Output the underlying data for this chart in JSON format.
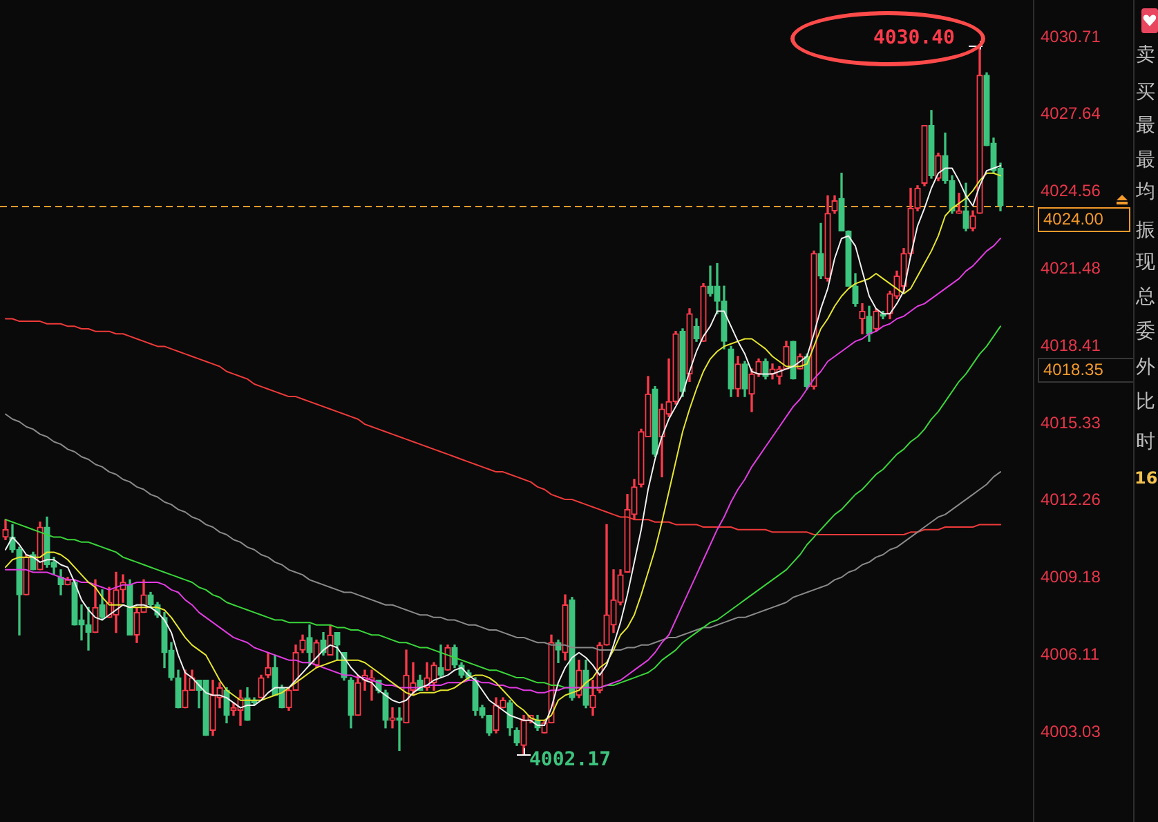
{
  "chart_data": {
    "type": "candlestick",
    "tick_labels": "y",
    "categories": [
      null,
      null,
      null,
      null,
      null,
      null,
      null,
      null,
      null,
      null,
      null,
      null,
      null,
      null,
      null,
      null,
      null,
      null,
      null,
      null,
      null,
      null,
      null,
      null,
      null,
      null,
      null,
      null,
      null,
      null,
      null,
      null,
      null,
      null,
      null,
      null,
      null,
      null,
      null,
      null,
      null,
      null,
      null,
      null,
      null,
      null,
      null,
      null,
      null,
      null,
      null,
      null,
      null,
      null,
      null,
      null,
      null,
      null,
      null,
      null,
      null,
      null,
      null,
      null,
      null,
      null,
      null,
      null,
      null,
      null,
      null,
      null,
      null,
      null,
      null,
      null,
      null,
      null,
      null,
      null,
      null,
      null,
      null,
      null,
      null,
      null,
      null,
      null,
      null,
      null,
      null,
      null,
      null,
      null,
      null,
      null,
      null,
      null,
      null,
      null,
      null,
      null,
      null,
      null,
      null,
      null,
      null,
      null,
      null,
      null,
      null,
      null,
      null,
      null,
      null,
      null,
      null,
      null,
      null,
      null,
      null,
      null,
      null,
      null,
      null,
      null,
      null,
      null,
      null,
      null,
      null,
      null,
      null,
      null,
      null,
      null,
      null,
      null,
      null,
      null,
      null,
      null,
      null,
      null,
      null
    ],
    "ohlc": [
      [
        4010.8,
        4011.5,
        4010.7,
        4011.1
      ],
      [
        4010.8,
        4011.3,
        4010.2,
        4010.3
      ],
      [
        4010.3,
        4010.4,
        4006.9,
        4008.5
      ],
      [
        4008.5,
        4010.1,
        4008.5,
        4010.0
      ],
      [
        4010.1,
        4010.2,
        4009.5,
        4009.5
      ],
      [
        4009.5,
        4011.4,
        4009.5,
        4011.2
      ],
      [
        4011.2,
        4011.6,
        4009.6,
        4009.7
      ],
      [
        4009.8,
        4010.0,
        4009.3,
        4009.6
      ],
      [
        4009.2,
        4009.5,
        4008.5,
        4008.9
      ],
      [
        4008.9,
        4009.2,
        4008.9,
        4009.1
      ],
      [
        4009.0,
        4009.1,
        4007.3,
        4007.3
      ],
      [
        4007.5,
        4008.1,
        4006.7,
        4007.3
      ],
      [
        4007.3,
        4008.0,
        4006.3,
        4007.0
      ],
      [
        4007.0,
        4009.1,
        4007.0,
        4008.0
      ],
      [
        4008.1,
        4008.7,
        4007.5,
        4007.6
      ],
      [
        4007.6,
        4008.8,
        4007.6,
        4008.2
      ],
      [
        4007.7,
        4009.4,
        4007.0,
        4008.7
      ],
      [
        4008.7,
        4009.3,
        4008.2,
        4009.0
      ],
      [
        4008.9,
        4009.1,
        4006.9,
        4006.9
      ],
      [
        4006.9,
        4008.0,
        4006.6,
        4007.8
      ],
      [
        4007.8,
        4009.1,
        4007.8,
        4008.5
      ],
      [
        4008.5,
        4008.6,
        4008.0,
        4008.1
      ],
      [
        4008.1,
        4008.2,
        4007.6,
        4007.7
      ],
      [
        4007.6,
        4007.8,
        4005.6,
        4006.2
      ],
      [
        4006.3,
        4006.6,
        4005.1,
        4005.2
      ],
      [
        4005.2,
        4005.5,
        4004.0,
        4004.0
      ],
      [
        4004.0,
        4005.5,
        4004.0,
        4004.7
      ],
      [
        4004.7,
        4005.5,
        4004.7,
        4005.2
      ],
      [
        4005.1,
        4005.1,
        4004.0,
        4004.7
      ],
      [
        4005.1,
        4005.1,
        4002.9,
        4002.9
      ],
      [
        4003.1,
        4005.1,
        4002.9,
        4004.5
      ],
      [
        4004.4,
        4005.0,
        4004.0,
        4004.8
      ],
      [
        4004.7,
        4004.8,
        4003.4,
        4003.7
      ],
      [
        4003.9,
        4004.2,
        4003.7,
        4004.0
      ],
      [
        4003.9,
        4004.7,
        4003.3,
        4004.4
      ],
      [
        4004.4,
        4004.8,
        4003.5,
        4003.5
      ],
      [
        4004.3,
        4004.4,
        4004.1,
        4004.2
      ],
      [
        4004.4,
        4005.3,
        4004.4,
        4005.2
      ],
      [
        4005.3,
        4006.2,
        4005.2,
        4005.6
      ],
      [
        4005.6,
        4006.1,
        4004.5,
        4004.5
      ],
      [
        4004.8,
        4004.9,
        4004.0,
        4004.0
      ],
      [
        4004.0,
        4004.8,
        4003.9,
        4004.7
      ],
      [
        4004.7,
        4006.5,
        4004.7,
        4006.2
      ],
      [
        4006.3,
        4006.9,
        4006.2,
        4006.7
      ],
      [
        4006.8,
        4007.3,
        4005.7,
        4006.2
      ],
      [
        4005.7,
        4006.7,
        4005.6,
        4006.6
      ],
      [
        4006.7,
        4007.0,
        4006.1,
        4006.2
      ],
      [
        4006.1,
        4007.3,
        4006.1,
        4006.9
      ],
      [
        4007.0,
        4007.0,
        4005.9,
        4006.5
      ],
      [
        4006.2,
        4006.2,
        4005.1,
        4005.2
      ],
      [
        4005.1,
        4005.2,
        4003.2,
        4003.7
      ],
      [
        4003.7,
        4005.3,
        4003.7,
        4005.0
      ],
      [
        4005.1,
        4005.5,
        4004.7,
        4005.3
      ],
      [
        4005.1,
        4005.5,
        4004.3,
        4005.2
      ],
      [
        4005.1,
        4005.1,
        4004.6,
        4004.7
      ],
      [
        4004.6,
        4004.7,
        4003.2,
        4003.5
      ],
      [
        4003.5,
        4004.0,
        4003.2,
        4003.6
      ],
      [
        4003.6,
        4004.0,
        4002.3,
        4003.5
      ],
      [
        4003.4,
        4006.3,
        4003.4,
        4005.3
      ],
      [
        4004.7,
        4005.8,
        4004.5,
        4005.0
      ],
      [
        4005.1,
        4005.3,
        4004.7,
        4004.7
      ],
      [
        4004.8,
        4005.8,
        4004.7,
        4005.2
      ],
      [
        4005.0,
        4005.8,
        4004.7,
        4005.7
      ],
      [
        4005.6,
        4006.5,
        4005.2,
        4005.3
      ],
      [
        4005.5,
        4006.5,
        4005.5,
        4006.4
      ],
      [
        4006.4,
        4006.5,
        4005.6,
        4005.7
      ],
      [
        4005.7,
        4005.8,
        4005.2,
        4005.3
      ],
      [
        4005.4,
        4005.5,
        4005.1,
        4005.2
      ],
      [
        4005.1,
        4005.2,
        4003.7,
        4003.9
      ],
      [
        4004.0,
        4004.1,
        4003.6,
        4003.7
      ],
      [
        4003.7,
        4003.7,
        4002.9,
        4003.0
      ],
      [
        4003.1,
        4004.4,
        4003.0,
        4004.1
      ],
      [
        4004.0,
        4004.4,
        4004.0,
        4004.3
      ],
      [
        4004.2,
        4004.3,
        4002.9,
        4003.2
      ],
      [
        4003.1,
        4003.2,
        4002.5,
        4002.6
      ],
      [
        4002.5,
        4003.7,
        4002.17,
        4003.5
      ],
      [
        4003.5,
        4003.7,
        4003.4,
        4003.7
      ],
      [
        4003.5,
        4003.7,
        4003.1,
        4003.2
      ],
      [
        4003.0,
        4003.5,
        4003.0,
        4003.4
      ],
      [
        4003.4,
        4006.9,
        4003.4,
        4006.6
      ],
      [
        4006.6,
        4006.7,
        4005.8,
        4006.3
      ],
      [
        4006.2,
        4008.5,
        4005.9,
        4008.1
      ],
      [
        4008.3,
        4008.4,
        4004.3,
        4004.4
      ],
      [
        4004.5,
        4005.9,
        4004.4,
        4005.5
      ],
      [
        4005.5,
        4005.9,
        4004.0,
        4004.1
      ],
      [
        4004.0,
        4005.1,
        4003.7,
        4004.5
      ],
      [
        4004.7,
        4006.6,
        4004.6,
        4006.5
      ],
      [
        4006.5,
        4011.3,
        4006.5,
        4007.7
      ],
      [
        4007.3,
        4009.5,
        4007.0,
        4008.3
      ],
      [
        4008.2,
        4009.5,
        4008.1,
        4009.3
      ],
      [
        4009.4,
        4012.5,
        4009.4,
        4011.9
      ],
      [
        4011.7,
        4013.1,
        4011.5,
        4012.8
      ],
      [
        4012.9,
        4015.1,
        4012.8,
        4015.0
      ],
      [
        4014.8,
        4017.2,
        4014.8,
        4016.5
      ],
      [
        4016.7,
        4016.8,
        4014.0,
        4014.1
      ],
      [
        4014.8,
        4016.1,
        4013.2,
        4015.9
      ],
      [
        4015.7,
        4017.9,
        4015.6,
        4016.2
      ],
      [
        4016.2,
        4019.0,
        4016.1,
        4018.9
      ],
      [
        4019.0,
        4019.1,
        4016.4,
        4016.6
      ],
      [
        4017.3,
        4019.9,
        4017.0,
        4019.7
      ],
      [
        4019.2,
        4019.5,
        4018.6,
        4018.7
      ],
      [
        4018.6,
        4020.9,
        4018.6,
        4020.8
      ],
      [
        4020.8,
        4021.6,
        4020.4,
        4020.5
      ],
      [
        4020.8,
        4021.7,
        4019.7,
        4020.2
      ],
      [
        4020.2,
        4020.8,
        4018.3,
        4018.6
      ],
      [
        4018.3,
        4018.4,
        4016.4,
        4016.7
      ],
      [
        4016.7,
        4018.0,
        4016.4,
        4017.7
      ],
      [
        4017.7,
        4017.8,
        4016.4,
        4016.7
      ],
      [
        4016.5,
        4017.5,
        4015.8,
        4017.3
      ],
      [
        4017.3,
        4017.9,
        4017.2,
        4017.8
      ],
      [
        4017.8,
        4017.9,
        4017.1,
        4017.2
      ],
      [
        4017.3,
        4017.7,
        4017.1,
        4017.5
      ],
      [
        4017.2,
        4017.6,
        4016.9,
        4017.5
      ],
      [
        4017.5,
        4018.6,
        4017.5,
        4018.4
      ],
      [
        4018.6,
        4018.6,
        4017.1,
        4017.1
      ],
      [
        4017.5,
        4018.1,
        4017.5,
        4018.0
      ],
      [
        4018.0,
        4018.1,
        4016.7,
        4016.8
      ],
      [
        4016.8,
        4022.2,
        4016.7,
        4022.1
      ],
      [
        4022.1,
        4023.3,
        4021.1,
        4021.2
      ],
      [
        4021.1,
        4024.4,
        4021.0,
        4023.7
      ],
      [
        4023.8,
        4024.4,
        4023.7,
        4024.2
      ],
      [
        4024.3,
        4025.3,
        4023.0,
        4023.0
      ],
      [
        4023.0,
        4023.0,
        4020.8,
        4020.8
      ],
      [
        4020.8,
        4021.3,
        4020.0,
        4020.1
      ],
      [
        4019.5,
        4020.1,
        4018.9,
        4019.8
      ],
      [
        4019.6,
        4020.0,
        4018.6,
        4018.9
      ],
      [
        4019.1,
        4019.9,
        4019.0,
        4019.8
      ],
      [
        4019.7,
        4019.8,
        4019.5,
        4019.6
      ],
      [
        4019.7,
        4020.6,
        4019.5,
        4020.5
      ],
      [
        4020.4,
        4021.4,
        4020.3,
        4021.2
      ],
      [
        4020.8,
        4022.3,
        4020.6,
        4022.1
      ],
      [
        4022.1,
        4024.7,
        4022.0,
        4023.9
      ],
      [
        4023.9,
        4024.8,
        4023.8,
        4024.7
      ],
      [
        4024.9,
        4027.2,
        4024.8,
        4027.2
      ],
      [
        4027.2,
        4027.8,
        4025.1,
        4025.2
      ],
      [
        4025.1,
        4026.1,
        4025.0,
        4026.0
      ],
      [
        4026.0,
        4026.9,
        4024.9,
        4025.0
      ],
      [
        4025.0,
        4025.2,
        4023.7,
        4023.8
      ],
      [
        4023.7,
        4024.5,
        4023.7,
        4023.8
      ],
      [
        4023.8,
        4024.9,
        4023.0,
        4023.1
      ],
      [
        4023.1,
        4023.8,
        4023.0,
        4023.6
      ],
      [
        4023.7,
        4030.4,
        4023.7,
        4029.2
      ],
      [
        4029.2,
        4029.3,
        4026.4,
        4026.4
      ],
      [
        4026.5,
        4026.7,
        4025.3,
        4025.4
      ],
      [
        4025.5,
        4025.7,
        4023.8,
        4024.0
      ]
    ],
    "colors": [
      "#ff3b4b",
      "#3dc47e",
      "#3dc47e",
      "#ff3b4b",
      "#3dc47e",
      "#ff3b4b",
      "#3dc47e",
      "#3dc47e",
      "#3dc47e",
      "#ff3b4b",
      "#3dc47e",
      "#3dc47e",
      "#3dc47e",
      "#ff3b4b",
      "#3dc47e",
      "#ff3b4b",
      "#ff3b4b",
      "#ff3b4b",
      "#3dc47e",
      "#ff3b4b",
      "#ff3b4b",
      "#3dc47e",
      "#3dc47e",
      "#3dc47e",
      "#3dc47e",
      "#3dc47e",
      "#ff3b4b",
      "#ff3b4b",
      "#3dc47e",
      "#3dc47e",
      "#ff3b4b",
      "#ff3b4b",
      "#3dc47e",
      "#ff3b4b",
      "#ff3b4b",
      "#3dc47e",
      "#3dc47e",
      "#ff3b4b",
      "#ff3b4b",
      "#3dc47e",
      "#3dc47e",
      "#ff3b4b",
      "#ff3b4b",
      "#ff3b4b",
      "#3dc47e",
      "#ff3b4b",
      "#3dc47e",
      "#ff3b4b",
      "#3dc47e",
      "#3dc47e",
      "#3dc47e",
      "#ff3b4b",
      "#ff3b4b",
      "#ff3b4b",
      "#3dc47e",
      "#3dc47e",
      "#ff3b4b",
      "#3dc47e",
      "#ff3b4b",
      "#ff3b4b",
      "#3dc47e",
      "#ff3b4b",
      "#ff3b4b",
      "#3dc47e",
      "#ff3b4b",
      "#3dc47e",
      "#3dc47e",
      "#3dc47e",
      "#3dc47e",
      "#3dc47e",
      "#3dc47e",
      "#ff3b4b",
      "#ff3b4b",
      "#3dc47e",
      "#3dc47e",
      "#ff3b4b",
      "#ff3b4b",
      "#3dc47e",
      "#ff3b4b",
      "#ff3b4b",
      "#3dc47e",
      "#ff3b4b",
      "#3dc47e",
      "#ff3b4b",
      "#3dc47e",
      "#ff3b4b",
      "#ff3b4b",
      "#ff3b4b",
      "#ff3b4b",
      "#ff3b4b",
      "#ff3b4b",
      "#ff3b4b",
      "#ff3b4b",
      "#ff3b4b",
      "#3dc47e",
      "#ff3b4b",
      "#ff3b4b",
      "#ff3b4b",
      "#3dc47e",
      "#ff3b4b",
      "#3dc47e",
      "#ff3b4b",
      "#3dc47e",
      "#3dc47e",
      "#3dc47e",
      "#3dc47e",
      "#ff3b4b",
      "#3dc47e",
      "#ff3b4b",
      "#ff3b4b",
      "#3dc47e",
      "#ff3b4b",
      "#ff3b4b",
      "#ff3b4b",
      "#3dc47e",
      "#ff3b4b",
      "#3dc47e",
      "#ff3b4b",
      "#3dc47e",
      "#ff3b4b",
      "#ff3b4b",
      "#3dc47e",
      "#3dc47e",
      "#3dc47e",
      "#ff3b4b",
      "#3dc47e",
      "#ff3b4b",
      "#3dc47e",
      "#ff3b4b",
      "#ff3b4b",
      "#ff3b4b",
      "#ff3b4b",
      "#ff3b4b",
      "#ff3b4b",
      "#3dc47e",
      "#ff3b4b",
      "#3dc47e",
      "#3dc47e",
      "#ff3b4b",
      "#3dc47e",
      "#ff3b4b",
      "#ff3b4b",
      "#3dc47e",
      "#3dc47e",
      "#3dc47e"
    ],
    "series": [
      {
        "type": "line",
        "color": "#f0f0f0",
        "values": [
          4010.3,
          4010.8,
          4010.5,
          4010.1,
          4010.0,
          4009.8,
          4009.9,
          4009.9,
          4009.7,
          4009.6,
          4009.0,
          4008.3,
          4007.9,
          4007.6,
          4007.5,
          4007.7,
          4007.9,
          4008.1,
          4008.0,
          4008.1,
          4008.1,
          4008.0,
          4007.8,
          4007.5,
          4007.0,
          4006.1,
          4005.4,
          4005.2,
          4004.9,
          4004.6,
          4004.5,
          4004.5,
          4004.4,
          4004.2,
          4004.0,
          4004.1,
          4004.1,
          4004.3,
          4004.6,
          4004.8,
          4004.8,
          4004.8,
          4005.1,
          4005.4,
          4005.7,
          4006.0,
          4006.3,
          4006.5,
          4006.4,
          4006.0,
          4005.6,
          4005.3,
          4005.1,
          4005.0,
          4004.7,
          4004.5,
          4004.3,
          4004.2,
          4004.3,
          4004.6,
          4004.8,
          4004.9,
          4005.1,
          4005.2,
          4005.3,
          4005.5,
          4005.6,
          4005.3,
          4005.1,
          4004.7,
          4004.3,
          4004.1,
          4003.9,
          4003.7,
          4003.6,
          4003.5,
          4003.5,
          4003.3,
          4003.3,
          4004.0,
          4005.0,
          4005.6,
          4006.0,
          4006.2,
          4006.0,
          4005.7,
          4005.3,
          4005.7,
          4006.5,
          4007.4,
          4008.5,
          4009.8,
          4011.1,
          4012.7,
          4013.9,
          4014.8,
          4015.5,
          4016.0,
          4016.5,
          4017.4,
          4018.2,
          4018.8,
          4019.2,
          4019.8,
          4019.8,
          4019.2,
          4018.6,
          4018.1,
          4017.4,
          4017.3,
          4017.3,
          4017.3,
          4017.4,
          4017.5,
          4017.6,
          4017.8,
          4018.0,
          4018.9,
          4019.9,
          4020.7,
          4021.9,
          4022.7,
          4022.8,
          4022.4,
          4021.4,
          4020.4,
          4019.9,
          4019.7,
          4019.7,
          4020.1,
          4020.6,
          4022.0,
          4023.2,
          4023.9,
          4024.7,
          4025.3,
          4025.5,
          4025.5,
          4025.0,
          4024.4,
          4024.0,
          4024.8,
          4025.4,
          4025.5,
          4025.6
        ]
      },
      {
        "type": "line",
        "color": "#e6e62e",
        "values": [
          4009.6,
          4009.9,
          4010.0,
          4010.0,
          4010.0,
          4010.0,
          4010.2,
          4010.2,
          4010.1,
          4009.9,
          4009.6,
          4009.3,
          4009.0,
          4008.8,
          4008.4,
          4008.1,
          4008.1,
          4008.1,
          4008.0,
          4008.0,
          4008.0,
          4008.0,
          4008.0,
          4007.9,
          4007.6,
          4007.2,
          4006.8,
          4006.5,
          4006.3,
          4006.1,
          4005.6,
          4005.1,
          4004.7,
          4004.5,
          4004.3,
          4004.3,
          4004.3,
          4004.3,
          4004.4,
          4004.5,
          4004.6,
          4004.8,
          4005.0,
          4005.2,
          4005.4,
          4005.6,
          4005.7,
          4005.8,
          4005.9,
          4005.9,
          4005.9,
          4005.9,
          4005.8,
          4005.6,
          4005.4,
          4005.2,
          4005.0,
          4004.8,
          4004.6,
          4004.5,
          4004.6,
          4004.6,
          4004.6,
          4004.7,
          4004.7,
          4004.8,
          4005.0,
          4005.2,
          4005.3,
          4005.3,
          4005.2,
          4005.0,
          4004.7,
          4004.4,
          4004.1,
          4003.9,
          4003.6,
          4003.5,
          4003.5,
          4003.7,
          4004.3,
          4004.5,
          4004.6,
          4004.7,
          4005.0,
          4005.2,
          4005.6,
          4005.8,
          4006.3,
          4006.9,
          4007.2,
          4007.7,
          4008.5,
          4009.4,
          4010.3,
          4011.4,
          4012.6,
          4013.8,
          4015.0,
          4015.9,
          4016.7,
          4017.4,
          4017.9,
          4018.2,
          4018.4,
          4018.5,
          4018.6,
          4018.7,
          4018.7,
          4018.5,
          4018.3,
          4018.0,
          4017.8,
          4017.6,
          4017.6,
          4017.6,
          4017.7,
          4018.4,
          4019.1,
          4019.5,
          4020.0,
          4020.4,
          4020.7,
          4020.9,
          4021.0,
          4021.1,
          4021.3,
          4021.1,
          4020.9,
          4020.7,
          4020.5,
          4020.7,
          4021.2,
          4021.7,
          4022.2,
          4022.8,
          4023.6,
          4023.9,
          4024.1,
          4024.3,
          4024.6,
          4025.0,
          4025.3,
          4025.3,
          4025.2
        ]
      },
      {
        "type": "line",
        "color": "#e33be3",
        "values": [
          4009.5,
          4009.5,
          4009.5,
          4009.5,
          4009.4,
          4009.4,
          4009.4,
          4009.3,
          4009.2,
          4009.1,
          4009.1,
          4009.0,
          4009.0,
          4008.9,
          4008.8,
          4008.7,
          4008.8,
          4008.9,
          4008.9,
          4009.0,
          4009.0,
          4009.0,
          4009.0,
          4008.9,
          4008.7,
          4008.6,
          4008.3,
          4008.1,
          4007.8,
          4007.6,
          4007.4,
          4007.2,
          4007.0,
          4006.8,
          4006.7,
          4006.6,
          4006.4,
          4006.3,
          4006.2,
          4006.1,
          4006.0,
          4005.9,
          4005.9,
          4005.8,
          4005.8,
          4005.7,
          4005.6,
          4005.5,
          4005.4,
          4005.3,
          4005.3,
          4005.2,
          4005.2,
          4005.1,
          4005.0,
          4004.9,
          4004.9,
          4004.8,
          4004.8,
          4004.8,
          4004.8,
          4004.9,
          4004.9,
          4004.9,
          4005.0,
          4005.0,
          4005.0,
          4005.1,
          4005.1,
          4005.0,
          4005.0,
          4004.9,
          4004.9,
          4004.8,
          4004.8,
          4004.7,
          4004.7,
          4004.6,
          4004.6,
          4004.7,
          4004.7,
          4004.8,
          4004.8,
          4004.8,
          4004.8,
          4004.8,
          4004.8,
          4004.9,
          4005.0,
          4005.1,
          4005.3,
          4005.5,
          4005.7,
          4005.9,
          4006.2,
          4006.6,
          4006.9,
          4007.5,
          4008.1,
          4008.7,
          4009.3,
          4009.9,
          4010.5,
          4011.1,
          4011.6,
          4012.2,
          4012.7,
          4013.1,
          4013.6,
          4014.0,
          4014.4,
          4014.8,
          4015.2,
          4015.6,
          4016.0,
          4016.3,
          4016.7,
          4017.1,
          4017.4,
          4017.8,
          4018.0,
          4018.2,
          4018.4,
          4018.6,
          4018.7,
          4018.9,
          4019.0,
          4019.2,
          4019.3,
          4019.5,
          4019.6,
          4019.8,
          4020.0,
          4020.1,
          4020.3,
          4020.5,
          4020.7,
          4020.9,
          4021.1,
          4021.4,
          4021.6,
          4021.9,
          4022.2,
          4022.4,
          4022.7
        ]
      },
      {
        "type": "line",
        "color": "#3ad63a",
        "values": [
          4011.5,
          4011.4,
          4011.3,
          4011.2,
          4011.1,
          4011.0,
          4010.9,
          4010.8,
          4010.8,
          4010.7,
          4010.7,
          4010.6,
          4010.6,
          4010.5,
          4010.4,
          4010.3,
          4010.2,
          4010.0,
          4009.9,
          4009.8,
          4009.7,
          4009.6,
          4009.5,
          4009.4,
          4009.3,
          4009.2,
          4009.1,
          4009.0,
          4008.8,
          4008.7,
          4008.5,
          4008.4,
          4008.2,
          4008.1,
          4008.0,
          4007.9,
          4007.8,
          4007.7,
          4007.6,
          4007.5,
          4007.5,
          4007.4,
          4007.4,
          4007.4,
          4007.4,
          4007.3,
          4007.3,
          4007.3,
          4007.2,
          4007.2,
          4007.1,
          4007.1,
          4007.0,
          4006.9,
          4006.9,
          4006.8,
          4006.7,
          4006.6,
          4006.6,
          4006.5,
          4006.4,
          4006.4,
          4006.3,
          4006.2,
          4006.1,
          4006.0,
          4005.9,
          4005.8,
          4005.7,
          4005.6,
          4005.5,
          4005.5,
          4005.4,
          4005.3,
          4005.2,
          4005.2,
          4005.1,
          4005.0,
          4005.0,
          4004.9,
          4004.9,
          4004.8,
          4004.8,
          4004.8,
          4004.8,
          4004.8,
          4004.8,
          4004.9,
          4004.9,
          4005.0,
          4005.1,
          4005.2,
          4005.3,
          4005.4,
          4005.6,
          4005.9,
          4006.1,
          4006.3,
          4006.6,
          4006.8,
          4007.0,
          4007.2,
          4007.4,
          4007.5,
          4007.7,
          4007.9,
          4008.1,
          4008.3,
          4008.5,
          4008.7,
          4008.9,
          4009.1,
          4009.3,
          4009.5,
          4009.8,
          4010.1,
          4010.5,
          4010.8,
          4011.1,
          4011.4,
          4011.7,
          4011.9,
          4012.2,
          4012.5,
          4012.7,
          4013.0,
          4013.3,
          4013.5,
          4013.8,
          4014.1,
          4014.3,
          4014.6,
          4014.8,
          4015.1,
          4015.5,
          4015.8,
          4016.2,
          4016.6,
          4017.0,
          4017.3,
          4017.7,
          4018.1,
          4018.4,
          4018.8,
          4019.2
        ]
      },
      {
        "type": "line",
        "color": "#8a8a8a",
        "values": [
          4015.7,
          4015.5,
          4015.4,
          4015.2,
          4015.1,
          4014.9,
          4014.8,
          4014.6,
          4014.5,
          4014.3,
          4014.2,
          4014.0,
          4013.9,
          4013.7,
          4013.6,
          4013.4,
          4013.3,
          4013.1,
          4013.0,
          4012.8,
          4012.7,
          4012.5,
          4012.4,
          4012.2,
          4012.1,
          4011.9,
          4011.8,
          4011.6,
          4011.5,
          4011.3,
          4011.2,
          4011.0,
          4010.9,
          4010.7,
          4010.6,
          4010.4,
          4010.3,
          4010.1,
          4010.0,
          4009.8,
          4009.7,
          4009.5,
          4009.4,
          4009.3,
          4009.1,
          4009.0,
          4008.9,
          4008.8,
          4008.7,
          4008.6,
          4008.6,
          4008.5,
          4008.4,
          4008.3,
          4008.2,
          4008.1,
          4008.1,
          4008.0,
          4007.9,
          4007.8,
          4007.7,
          4007.7,
          4007.6,
          4007.6,
          4007.5,
          4007.5,
          4007.4,
          4007.3,
          4007.3,
          4007.2,
          4007.1,
          4007.1,
          4007.0,
          4006.9,
          4006.8,
          4006.8,
          4006.7,
          4006.6,
          4006.6,
          4006.5,
          4006.5,
          4006.5,
          4006.4,
          4006.4,
          4006.4,
          4006.4,
          4006.3,
          4006.3,
          4006.3,
          4006.3,
          4006.4,
          4006.4,
          4006.5,
          4006.5,
          4006.6,
          4006.7,
          4006.8,
          4006.8,
          4006.9,
          4007.0,
          4007.1,
          4007.2,
          4007.2,
          4007.3,
          4007.4,
          4007.5,
          4007.6,
          4007.6,
          4007.7,
          4007.8,
          4007.9,
          4008.0,
          4008.1,
          4008.2,
          4008.4,
          4008.5,
          4008.6,
          4008.7,
          4008.8,
          4008.9,
          4009.1,
          4009.2,
          4009.4,
          4009.5,
          4009.7,
          4009.8,
          4010.0,
          4010.1,
          4010.3,
          4010.4,
          4010.6,
          4010.8,
          4011.0,
          4011.2,
          4011.4,
          4011.6,
          4011.7,
          4011.9,
          4012.1,
          4012.3,
          4012.5,
          4012.7,
          4012.9,
          4013.2,
          4013.4
        ]
      },
      {
        "type": "line",
        "color": "#f03a3a",
        "values": [
          4019.5,
          4019.5,
          4019.4,
          4019.4,
          4019.4,
          4019.4,
          4019.3,
          4019.3,
          4019.3,
          4019.2,
          4019.2,
          4019.1,
          4019.1,
          4019.0,
          4019.0,
          4019.0,
          4018.9,
          4018.9,
          4018.8,
          4018.7,
          4018.6,
          4018.5,
          4018.4,
          4018.4,
          4018.3,
          4018.2,
          4018.1,
          4018.0,
          4017.9,
          4017.8,
          4017.7,
          4017.6,
          4017.4,
          4017.3,
          4017.2,
          4017.1,
          4016.9,
          4016.8,
          4016.7,
          4016.6,
          4016.5,
          4016.4,
          4016.4,
          4016.3,
          4016.2,
          4016.1,
          4016.0,
          4015.9,
          4015.8,
          4015.7,
          4015.6,
          4015.5,
          4015.3,
          4015.2,
          4015.1,
          4015.0,
          4014.9,
          4014.8,
          4014.7,
          4014.6,
          4014.5,
          4014.4,
          4014.3,
          4014.2,
          4014.1,
          4014.0,
          4013.9,
          4013.8,
          4013.7,
          4013.6,
          4013.5,
          4013.4,
          4013.4,
          4013.3,
          4013.2,
          4013.1,
          4013.0,
          4012.8,
          4012.7,
          4012.5,
          4012.4,
          4012.3,
          4012.3,
          4012.2,
          4012.1,
          4012.0,
          4011.9,
          4011.8,
          4011.7,
          4011.6,
          4011.6,
          4011.5,
          4011.5,
          4011.5,
          4011.4,
          4011.4,
          4011.4,
          4011.3,
          4011.3,
          4011.3,
          4011.3,
          4011.2,
          4011.2,
          4011.2,
          4011.2,
          4011.2,
          4011.1,
          4011.1,
          4011.1,
          4011.1,
          4011.1,
          4011.0,
          4011.0,
          4011.0,
          4011.0,
          4011.0,
          4011.0,
          4010.9,
          4010.9,
          4010.9,
          4010.9,
          4010.9,
          4010.9,
          4010.9,
          4010.9,
          4010.9,
          4010.9,
          4010.9,
          4010.9,
          4010.9,
          4010.9,
          4011.0,
          4011.0,
          4011.1,
          4011.1,
          4011.1,
          4011.2,
          4011.2,
          4011.2,
          4011.2,
          4011.2,
          4011.3,
          4011.3,
          4011.3,
          4011.3
        ]
      }
    ],
    "ylim": [
      3999.45,
      4032.2
    ],
    "yticks": [
      4003.03,
      4006.11,
      4009.18,
      4012.26,
      4015.33,
      4018.41,
      4021.48,
      4024.56,
      4027.64,
      4030.71
    ],
    "ref_lines": [
      {
        "axis": "y",
        "value": 4024.0,
        "label": "4024.00",
        "color": "#f39a2b",
        "line_style": "dashed"
      }
    ],
    "annotations": [
      "4030.40",
      "4002.17",
      "4018.35",
      "卖",
      "买",
      "最",
      "最",
      "均",
      "振",
      "现",
      "总",
      "委",
      "外",
      "比",
      "时",
      "16"
    ]
  }
}
